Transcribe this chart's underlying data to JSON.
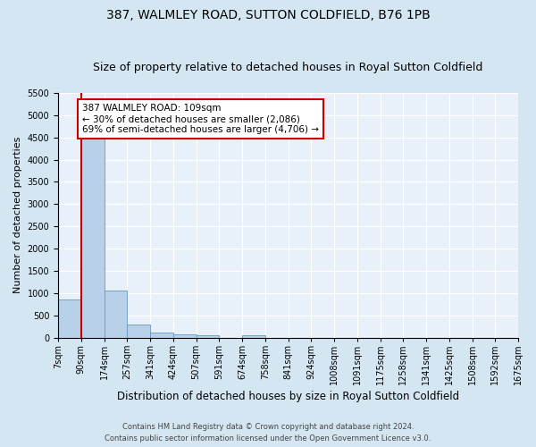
{
  "title": "387, WALMLEY ROAD, SUTTON COLDFIELD, B76 1PB",
  "subtitle": "Size of property relative to detached houses in Royal Sutton Coldfield",
  "xlabel": "Distribution of detached houses by size in Royal Sutton Coldfield",
  "ylabel": "Number of detached properties",
  "footer_line1": "Contains HM Land Registry data © Crown copyright and database right 2024.",
  "footer_line2": "Contains public sector information licensed under the Open Government Licence v3.0.",
  "bin_labels": [
    "7sqm",
    "90sqm",
    "174sqm",
    "257sqm",
    "341sqm",
    "424sqm",
    "507sqm",
    "591sqm",
    "674sqm",
    "758sqm",
    "841sqm",
    "924sqm",
    "1008sqm",
    "1091sqm",
    "1175sqm",
    "1258sqm",
    "1341sqm",
    "1425sqm",
    "1508sqm",
    "1592sqm",
    "1675sqm"
  ],
  "bar_values": [
    850,
    4750,
    1050,
    300,
    110,
    80,
    55,
    0,
    55,
    0,
    0,
    0,
    0,
    0,
    0,
    0,
    0,
    0,
    0,
    0
  ],
  "bar_color": "#b8d0e8",
  "bar_edge_color": "#6699bb",
  "annotation_text": "387 WALMLEY ROAD: 109sqm\n← 30% of detached houses are smaller (2,086)\n69% of semi-detached houses are larger (4,706) →",
  "annotation_box_color": "#ffffff",
  "annotation_box_edge_color": "#cc0000",
  "vline_color": "#cc0000",
  "vline_x": 1.0,
  "ylim": [
    0,
    5500
  ],
  "yticks": [
    0,
    500,
    1000,
    1500,
    2000,
    2500,
    3000,
    3500,
    4000,
    4500,
    5000,
    5500
  ],
  "bg_color": "#d5e6f3",
  "plot_bg_color": "#e8f1f9",
  "title_fontsize": 10,
  "subtitle_fontsize": 9,
  "tick_fontsize": 7,
  "ylabel_fontsize": 8,
  "xlabel_fontsize": 8.5,
  "footer_fontsize": 6,
  "annot_fontsize": 7.5
}
